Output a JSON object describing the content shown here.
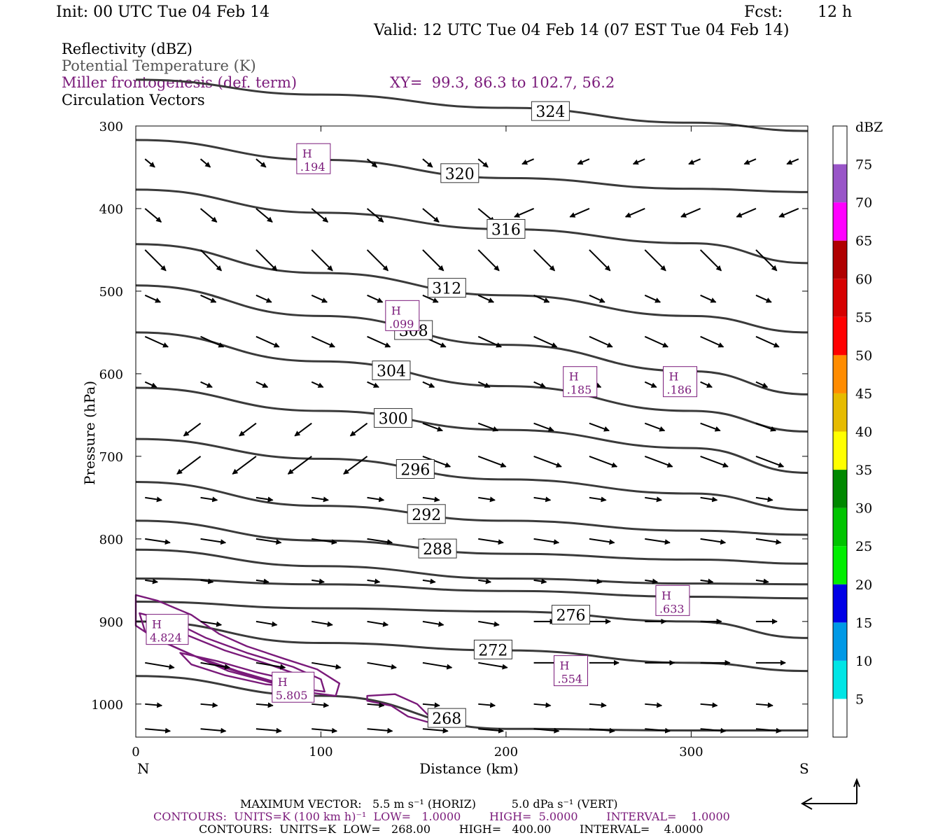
{
  "header": {
    "init": "Init: 00 UTC Tue 04 Feb 14",
    "fcst_label": "Fcst:",
    "fcst_value": "12 h",
    "valid": "Valid: 12 UTC Tue 04 Feb 14 (07 EST Tue 04 Feb 14)",
    "fields": [
      {
        "label": "Reflectivity (dBZ)",
        "color": "#000000"
      },
      {
        "label": "Potential Temperature (K)",
        "color": "#555555"
      },
      {
        "label": "Miller frontogenesis (def. term)",
        "color": "#7a1a7a"
      },
      {
        "label": "Circulation Vectors",
        "color": "#000000"
      }
    ],
    "xy_text": "XY=  99.3, 86.3 to 102.7, 56.2"
  },
  "footer": {
    "max_vector": "MAXIMUM VECTOR:   5.5 m s⁻¹ (HORIZ)          5.0 dPa s⁻¹ (VERT)",
    "contours_fronto": "CONTOURS:  UNITS=K (100 km h)⁻¹  LOW=   1.0000        HIGH=  5.0000        INTERVAL=    1.0000",
    "contours_theta": "CONTOURS:  UNITS=K  LOW=   268.00        HIGH=   400.00        INTERVAL=    4.0000"
  },
  "colors": {
    "theta": "#3a3a3a",
    "fronto": "#7a1a7a",
    "vector": "#000000",
    "frame": "#000000"
  },
  "colorbar": {
    "unit": "dBZ",
    "labels": [
      "5",
      "10",
      "15",
      "20",
      "25",
      "30",
      "35",
      "40",
      "45",
      "50",
      "55",
      "60",
      "65",
      "70",
      "75"
    ],
    "colors": [
      "#ffffff",
      "#00e5e5",
      "#0099e6",
      "#0000e6",
      "#00ee00",
      "#00c400",
      "#008800",
      "#ffff00",
      "#e6bb00",
      "#ff8c00",
      "#ff0000",
      "#d60000",
      "#b00000",
      "#ff00ff",
      "#9955c8",
      "#ffffff"
    ]
  },
  "chart_data": {
    "type": "cross-section",
    "title": "",
    "xlabel": "Distance (km)",
    "ylabel": "Pressure (hPa)",
    "xlim": [
      0,
      363
    ],
    "ylim": [
      1040,
      300
    ],
    "x_ticks": [
      0,
      100,
      200,
      300
    ],
    "y_ticks": [
      300,
      400,
      500,
      600,
      700,
      800,
      900,
      1000
    ],
    "x_end_labels": {
      "left": "N",
      "right": "S"
    },
    "theta_contours": [
      {
        "value": 324,
        "x": [
          0,
          100,
          200,
          300,
          363
        ],
        "p": [
          244,
          262,
          278,
          296,
          306
        ],
        "label_x": 224
      },
      {
        "value": 320,
        "x": [
          0,
          100,
          200,
          300,
          363
        ],
        "p": [
          317,
          341,
          363,
          376,
          380
        ],
        "label_x": 175
      },
      {
        "value": 316,
        "x": [
          0,
          100,
          200,
          300,
          363
        ],
        "p": [
          377,
          405,
          425,
          442,
          466
        ],
        "label_x": 200
      },
      {
        "value": 312,
        "x": [
          0,
          100,
          200,
          300,
          363
        ],
        "p": [
          443,
          478,
          505,
          530,
          550
        ],
        "label_x": 168
      },
      {
        "value": 308,
        "x": [
          0,
          100,
          200,
          300,
          363
        ],
        "p": [
          493,
          530,
          565,
          597,
          625
        ],
        "label_x": 150
      },
      {
        "value": 304,
        "x": [
          0,
          100,
          200,
          300,
          363
        ],
        "p": [
          550,
          585,
          615,
          645,
          670
        ],
        "label_x": 138
      },
      {
        "value": 300,
        "x": [
          0,
          100,
          200,
          300,
          363
        ],
        "p": [
          617,
          645,
          668,
          690,
          720
        ],
        "label_x": 139
      },
      {
        "value": 296,
        "x": [
          0,
          100,
          200,
          300,
          363
        ],
        "p": [
          679,
          703,
          728,
          745,
          765
        ],
        "label_x": 151
      },
      {
        "value": 292,
        "x": [
          0,
          100,
          200,
          300,
          363
        ],
        "p": [
          731,
          760,
          778,
          790,
          795
        ],
        "label_x": 157
      },
      {
        "value": 288,
        "x": [
          0,
          100,
          200,
          300,
          363
        ],
        "p": [
          778,
          802,
          818,
          825,
          830
        ],
        "label_x": 163
      },
      {
        "value": 284,
        "x": [
          0,
          100,
          200,
          300,
          363
        ],
        "p": [
          813,
          833,
          848,
          854,
          855
        ],
        "label_x": null
      },
      {
        "value": 280,
        "x": [
          0,
          100,
          200,
          300,
          363
        ],
        "p": [
          848,
          855,
          863,
          870,
          872
        ],
        "label_x": null
      },
      {
        "value": 276,
        "x": [
          0,
          100,
          200,
          300,
          363
        ],
        "p": [
          876,
          884,
          888,
          900,
          920
        ],
        "label_x": 235
      },
      {
        "value": 272,
        "x": [
          0,
          100,
          200,
          300,
          363
        ],
        "p": [
          900,
          926,
          935,
          950,
          960
        ],
        "label_x": 193
      },
      {
        "value": 268,
        "x": [
          0,
          100,
          200,
          300,
          363
        ],
        "p": [
          966,
          990,
          1030,
          1032,
          1032
        ],
        "label_x": 168
      }
    ],
    "frontogenesis_maxima": [
      {
        "label": "H",
        "value": ".194",
        "x": 96,
        "p": 340
      },
      {
        "label": "H",
        "value": ".099",
        "x": 144,
        "p": 530
      },
      {
        "label": "H",
        "value": ".185",
        "x": 240,
        "p": 610
      },
      {
        "label": "H",
        "value": ".186",
        "x": 294,
        "p": 610
      },
      {
        "label": "H",
        "value": ".633",
        "x": 290,
        "p": 875
      },
      {
        "label": "H",
        "value": ".554",
        "x": 235,
        "p": 960
      },
      {
        "label": "H",
        "value": "4.824",
        "x": 17,
        "p": 910
      },
      {
        "label": "H",
        "value": "5.805",
        "x": 85,
        "p": 980
      }
    ],
    "fronto_contour_levels": [
      1,
      2,
      3,
      4,
      5
    ]
  }
}
